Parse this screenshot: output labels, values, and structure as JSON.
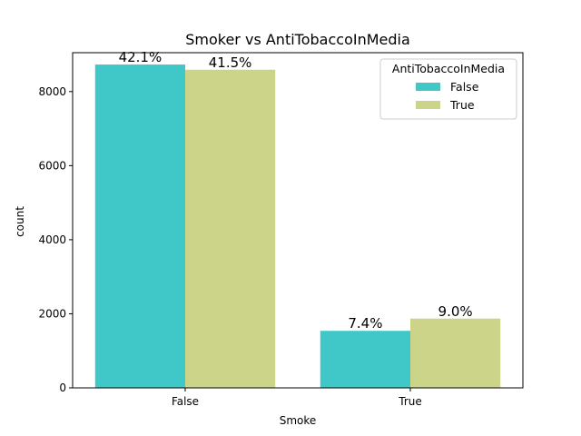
{
  "chart_data": {
    "type": "bar",
    "title": "Smoker vs AntiTobaccoInMedia",
    "xlabel": "Smoke",
    "ylabel": "count",
    "categories": [
      "False",
      "True"
    ],
    "ylim": [
      0,
      9050
    ],
    "yticks": [
      0,
      2000,
      4000,
      6000,
      8000
    ],
    "legend": {
      "title": "AntiTobaccoInMedia",
      "placement": "top-right"
    },
    "series": [
      {
        "name": "False",
        "color": "#40c8c8",
        "values": [
          8730,
          1540
        ],
        "labels": [
          "42.1%",
          "7.4%"
        ]
      },
      {
        "name": "True",
        "color": "#ccd48a",
        "values": [
          8590,
          1870
        ],
        "labels": [
          "41.5%",
          "9.0%"
        ]
      }
    ]
  }
}
